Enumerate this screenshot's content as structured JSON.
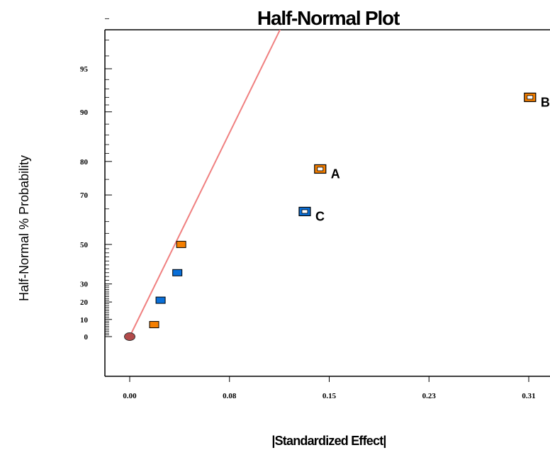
{
  "chart_data": {
    "type": "scatter",
    "title": "Half-Normal Plot",
    "xlabel": "|Standardized Effect|",
    "ylabel": "Half-Normal % Probability",
    "xlim": [
      -0.0125,
      0.3385
    ],
    "x_ticks": [
      {
        "value": 0.0,
        "label": "0.00"
      },
      {
        "value": 0.0775,
        "label": "0.08"
      },
      {
        "value": 0.155,
        "label": "0.15"
      },
      {
        "value": 0.2325,
        "label": "0.23"
      },
      {
        "value": 0.31,
        "label": "0.31"
      }
    ],
    "y_ticks": [
      {
        "value": 0,
        "label": "0"
      },
      {
        "value": 10,
        "label": "10"
      },
      {
        "value": 20,
        "label": "20"
      },
      {
        "value": 30,
        "label": "30"
      },
      {
        "value": 50,
        "label": "50"
      },
      {
        "value": 70,
        "label": "70"
      },
      {
        "value": 80,
        "label": "80"
      },
      {
        "value": 90,
        "label": "90"
      },
      {
        "value": 95,
        "label": "95"
      }
    ],
    "y_minor_ticks": [
      1,
      2,
      3,
      4,
      5,
      6,
      7,
      8,
      9,
      11,
      12,
      13,
      14,
      15,
      16,
      17,
      18,
      19,
      21,
      22,
      23,
      24,
      25,
      26,
      27,
      28,
      29,
      32,
      34,
      36,
      38,
      40,
      42,
      44,
      46,
      48,
      55,
      60,
      65,
      75,
      82,
      84,
      86,
      88,
      91,
      92,
      93,
      94,
      96,
      97,
      98,
      99
    ],
    "grid": false,
    "colors": {
      "positive": "#f57f00",
      "negative": "#0a6fd8",
      "origin": "#b24a4a",
      "reference_line": "#f08080"
    },
    "reference_line": {
      "x": [
        0.0,
        0.146
      ],
      "y_prob": [
        0,
        99.5
      ]
    },
    "points": [
      {
        "x": 0.0,
        "y": 0,
        "effect": "origin",
        "label": ""
      },
      {
        "x": 0.019,
        "y": 7,
        "effect": "positive",
        "label": ""
      },
      {
        "x": 0.024,
        "y": 21,
        "effect": "negative",
        "label": ""
      },
      {
        "x": 0.037,
        "y": 36,
        "effect": "negative",
        "label": ""
      },
      {
        "x": 0.04,
        "y": 50,
        "effect": "positive",
        "label": ""
      },
      {
        "x": 0.136,
        "y": 64,
        "effect": "negative",
        "label": "C"
      },
      {
        "x": 0.148,
        "y": 78,
        "effect": "positive",
        "label": "A"
      },
      {
        "x": 0.311,
        "y": 92,
        "effect": "positive",
        "label": "B"
      }
    ]
  }
}
